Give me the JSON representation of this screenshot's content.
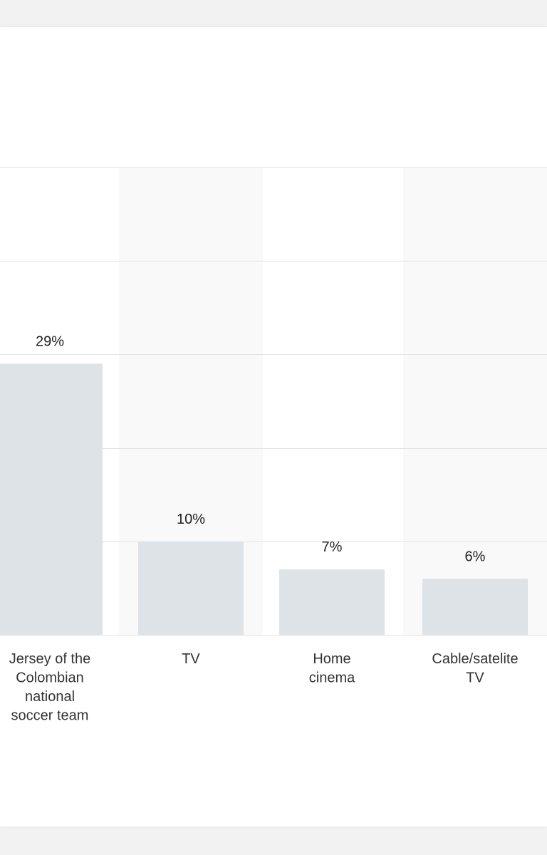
{
  "chart_data": {
    "type": "bar",
    "title": "",
    "xlabel": "",
    "ylabel": "",
    "categories": [
      [
        "Jersey of the",
        "Colombian",
        "national",
        "soccer team"
      ],
      [
        "TV"
      ],
      [
        "Home",
        "cinema"
      ],
      [
        "Cable/satelite",
        "TV"
      ]
    ],
    "values": [
      29,
      10,
      7,
      6
    ],
    "value_labels": [
      "29%",
      "10%",
      "7%",
      "6%"
    ],
    "ylim": [
      0,
      50
    ],
    "grid": true,
    "colors": {
      "bar": "#dde3e6",
      "stripe": "#f9f9f9",
      "grid": "#e3e3e3",
      "background": "#ffffff"
    }
  }
}
